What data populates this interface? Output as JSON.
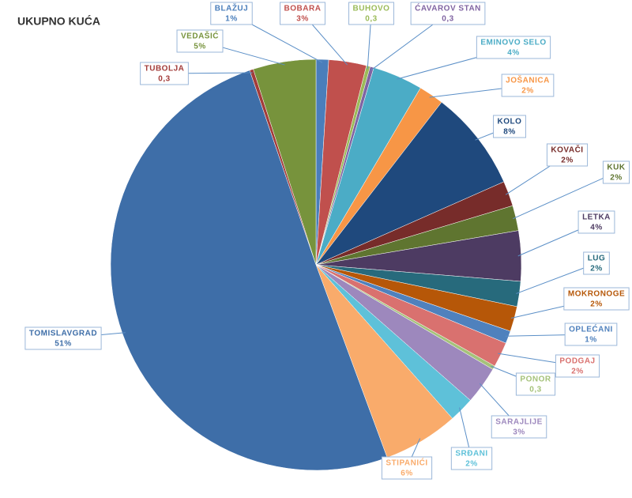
{
  "chart_data": {
    "type": "pie",
    "title": "UKUPNO KUĆA",
    "categories": [
      "BLAŽUJ",
      "BOBARA",
      "BUHOVO",
      "ĆAVAROV STAN",
      "EMINOVO SELO",
      "JOŠANICA",
      "KOLO",
      "KOVAČI",
      "KUK",
      "LETKA",
      "LUG",
      "MOKRONOGE",
      "OPLEĆANI",
      "PODGAJ",
      "PONOR",
      "SARAJLIJE",
      "SRĐANI",
      "STIPANIĆI",
      "TOMISLAVGRAD",
      "TUBOLJA",
      "VEDAŠIĆ"
    ],
    "values": [
      1,
      3,
      0.3,
      0.3,
      4,
      2,
      8,
      2,
      2,
      4,
      2,
      2,
      1,
      2,
      0.3,
      3,
      2,
      6,
      51,
      0.3,
      5
    ],
    "value_labels": [
      "1%",
      "3%",
      "0,3",
      "0,3",
      "4%",
      "2%",
      "8%",
      "2%",
      "2%",
      "4%",
      "2%",
      "2%",
      "1%",
      "2%",
      "0,3",
      "3%",
      "2%",
      "6%",
      "51%",
      "0,3",
      "5%"
    ],
    "colors": [
      "#4a7ebb",
      "#c0504d",
      "#9bbb59",
      "#8064a2",
      "#4bacc6",
      "#f79646",
      "#1f497d",
      "#772c2a",
      "#5f7530",
      "#4d3b62",
      "#276a7c",
      "#b65708",
      "#4f81bd",
      "#d9716f",
      "#a5c27a",
      "#9d88bd",
      "#5ec1d9",
      "#f9ab6b",
      "#3e6ea8",
      "#a33c3a",
      "#77933c"
    ]
  }
}
